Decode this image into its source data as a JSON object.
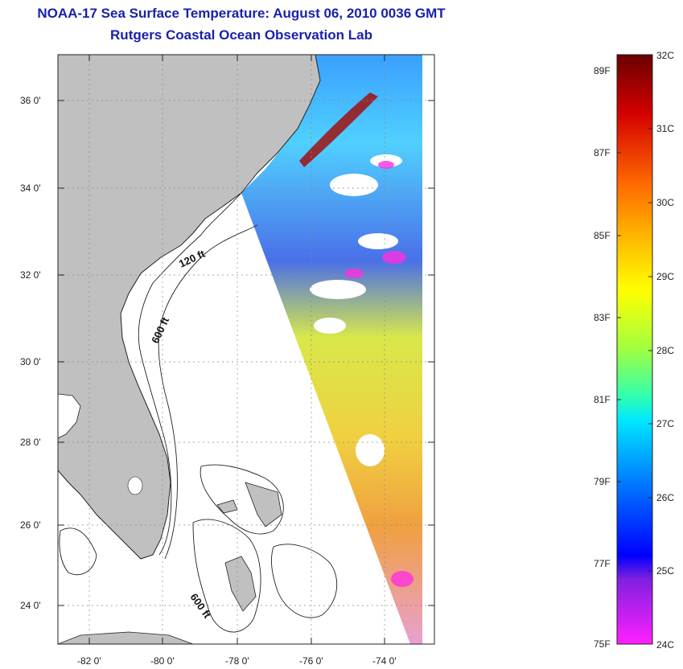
{
  "title": {
    "line1": "NOAA-17 Sea Surface Temperature:  August 06, 2010 0036 GMT",
    "line2": "Rutgers Coastal Ocean Observation Lab"
  },
  "map": {
    "lat_labels": [
      "36 0'",
      "34 0'",
      "32 0'",
      "30 0'",
      "28 0'",
      "26 0'",
      "24 0'"
    ],
    "lon_labels": [
      "-82 0'",
      "-80 0'",
      "-78 0'",
      "-76 0'",
      "-74 0'"
    ],
    "contour_labels": {
      "shelf_120": "120 ft",
      "shelf_600": "600 ft",
      "bahamas_600": "600 ft"
    },
    "land_color": "#c0c0c0",
    "ocean_color": "#ffffff"
  },
  "colorbar": {
    "celsius_labels": [
      "32C",
      "31C",
      "30C",
      "29C",
      "28C",
      "27C",
      "26C",
      "25C",
      "24C"
    ],
    "fahrenheit_labels": [
      "89F",
      "87F",
      "85F",
      "83F",
      "81F",
      "79F",
      "77F",
      "75F"
    ],
    "colors": [
      "#6b0000",
      "#d40000",
      "#ff6a00",
      "#ffc000",
      "#ffff00",
      "#a0ff40",
      "#30ffb0",
      "#00e8ff",
      "#0080ff",
      "#0000ff",
      "#8020e0",
      "#ff20ff"
    ]
  }
}
